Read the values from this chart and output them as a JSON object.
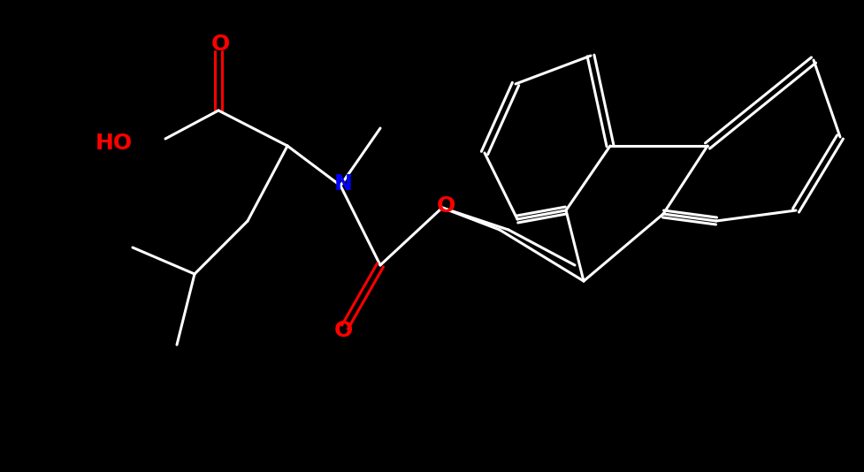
{
  "bg": "#000000",
  "white": "#ffffff",
  "red": "#ff0000",
  "blue": "#0000ff",
  "fig_width": 9.78,
  "fig_height": 5.34,
  "dpi": 100,
  "lw": 2.2,
  "font_size": 16,
  "atoms": {
    "O1_label": "O",
    "HO_label": "HO",
    "N_label": "N",
    "O2_label": "O",
    "O3_label": "O"
  }
}
